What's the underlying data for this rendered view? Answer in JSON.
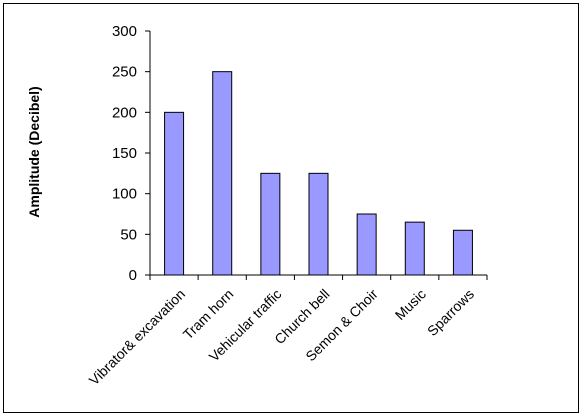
{
  "chart_data": {
    "type": "bar",
    "title": "",
    "xlabel": "",
    "ylabel": "Amplitude (Decibel)",
    "categories": [
      "Vibrator& excavation",
      "Tram horn",
      "Vehicular traffic",
      "Church bell",
      "Semon & Choir",
      "Music",
      "Sparrows"
    ],
    "values": [
      200,
      250,
      125,
      125,
      75,
      65,
      55
    ],
    "ylim": [
      0,
      300
    ],
    "yticks": [
      "0",
      "50",
      "100",
      "150",
      "200",
      "250",
      "300"
    ],
    "grid": false,
    "legend": "none",
    "bar_color": "#9999ff",
    "bar_edge_color": "#000000"
  }
}
